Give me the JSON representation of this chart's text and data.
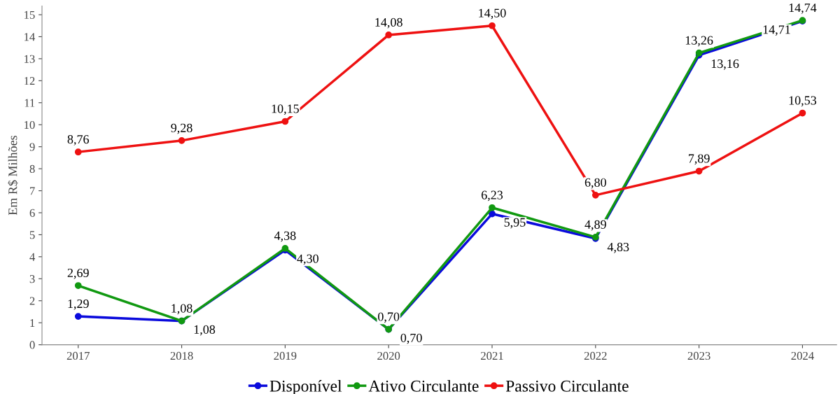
{
  "chart_data": {
    "type": "line",
    "ylabel": "Em R$ Milhões",
    "categories": [
      "2017",
      "2018",
      "2019",
      "2020",
      "2021",
      "2022",
      "2023",
      "2024"
    ],
    "series": [
      {
        "name": "Disponível",
        "color": "#0a0adc",
        "values": [
          1.29,
          1.08,
          4.3,
          0.7,
          5.95,
          4.83,
          13.16,
          14.71
        ],
        "value_labels": [
          "1,29",
          "1,08",
          "4,30",
          "0,70",
          "5,95",
          "4,83",
          "13,16",
          "14,71"
        ]
      },
      {
        "name": "Ativo Circulante",
        "color": "#119911",
        "values": [
          2.69,
          1.08,
          4.38,
          0.7,
          6.23,
          4.89,
          13.26,
          14.74
        ],
        "value_labels": [
          "2,69",
          "1,08",
          "4,38",
          "0,70",
          "6,23",
          "4,89",
          "13,26",
          "14,74"
        ]
      },
      {
        "name": "Passivo Circulante",
        "color": "#ee1111",
        "values": [
          8.76,
          9.28,
          10.15,
          14.08,
          14.5,
          6.8,
          7.89,
          10.53
        ],
        "value_labels": [
          "8,76",
          "9,28",
          "10,15",
          "14,08",
          "14,50",
          "6,80",
          "7,89",
          "10,53"
        ]
      }
    ],
    "ylim": [
      0,
      15.4
    ],
    "yticks": [
      0,
      1,
      2,
      3,
      4,
      5,
      6,
      7,
      8,
      9,
      10,
      11,
      12,
      13,
      14,
      15
    ],
    "grid": false,
    "legend": "bottom",
    "marker": "circle",
    "line_style": "solid"
  }
}
